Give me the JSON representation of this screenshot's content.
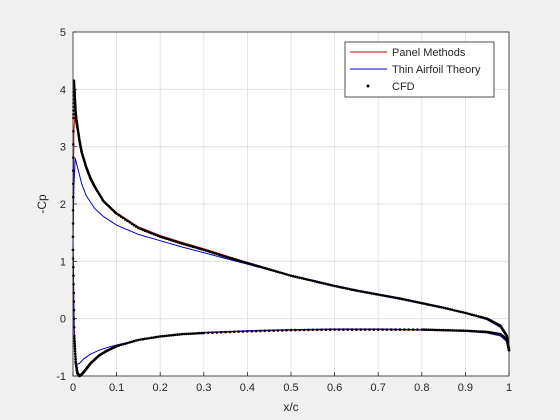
{
  "chart_data": {
    "type": "line",
    "xlabel": "x/c",
    "ylabel": "-Cp",
    "xlim": [
      0,
      1
    ],
    "ylim": [
      -1,
      5
    ],
    "xticks": [
      "0",
      "0.1",
      "0.2",
      "0.3",
      "0.4",
      "0.5",
      "0.6",
      "0.7",
      "0.8",
      "0.9",
      "1"
    ],
    "yticks": [
      "-1",
      "0",
      "1",
      "2",
      "3",
      "4",
      "5"
    ],
    "grid": true,
    "legend_position": "top-right",
    "series": [
      {
        "name": "Panel Methods",
        "color": "#cc0000",
        "style": "line",
        "upper": {
          "x": [
            0,
            0.002,
            0.005,
            0.01,
            0.02,
            0.03,
            0.05,
            0.07,
            0.1,
            0.15,
            0.2,
            0.25,
            0.3,
            0.35,
            0.4,
            0.45,
            0.5,
            0.55,
            0.6,
            0.65,
            0.7,
            0.75,
            0.8,
            0.85,
            0.9,
            0.95,
            0.98,
            0.995,
            1.0
          ],
          "y": [
            1.3,
            3.3,
            3.6,
            3.3,
            2.9,
            2.65,
            2.3,
            2.05,
            1.85,
            1.6,
            1.45,
            1.33,
            1.22,
            1.1,
            0.98,
            0.87,
            0.75,
            0.67,
            0.57,
            0.5,
            0.42,
            0.35,
            0.27,
            0.19,
            0.1,
            0.0,
            -0.12,
            -0.3,
            -0.55
          ]
        },
        "lower": {
          "x": [
            0,
            0.003,
            0.008,
            0.015,
            0.025,
            0.04,
            0.06,
            0.08,
            0.1,
            0.15,
            0.2,
            0.25,
            0.3,
            0.4,
            0.5,
            0.6,
            0.7,
            0.8,
            0.85,
            0.9,
            0.95,
            0.98,
            0.995,
            1.0
          ],
          "y": [
            1.3,
            -0.2,
            -0.85,
            -1.0,
            -0.95,
            -0.8,
            -0.65,
            -0.55,
            -0.48,
            -0.37,
            -0.31,
            -0.27,
            -0.25,
            -0.22,
            -0.2,
            -0.19,
            -0.19,
            -0.2,
            -0.21,
            -0.22,
            -0.24,
            -0.28,
            -0.38,
            -0.55
          ]
        }
      },
      {
        "name": "Thin Airfoil Theory",
        "color": "#0000cc",
        "style": "line",
        "upper": {
          "x": [
            0,
            0.002,
            0.005,
            0.01,
            0.02,
            0.03,
            0.05,
            0.07,
            0.1,
            0.15,
            0.2,
            0.25,
            0.3,
            0.35,
            0.4,
            0.45,
            0.5,
            0.55,
            0.6,
            0.65,
            0.7,
            0.75,
            0.8,
            0.85,
            0.9,
            0.95,
            0.98,
            0.995,
            1.0
          ],
          "y": [
            1.4,
            2.3,
            2.8,
            2.65,
            2.35,
            2.15,
            1.92,
            1.78,
            1.63,
            1.47,
            1.36,
            1.25,
            1.15,
            1.05,
            0.95,
            0.85,
            0.75,
            0.67,
            0.58,
            0.5,
            0.43,
            0.36,
            0.28,
            0.2,
            0.1,
            -0.02,
            -0.15,
            -0.32,
            -0.55
          ]
        },
        "lower": {
          "x": [
            0,
            0.003,
            0.008,
            0.015,
            0.025,
            0.04,
            0.06,
            0.08,
            0.1,
            0.15,
            0.2,
            0.25,
            0.3,
            0.4,
            0.5,
            0.6,
            0.7,
            0.8,
            0.85,
            0.9,
            0.95,
            0.98,
            0.995,
            1.0
          ],
          "y": [
            1.4,
            -0.4,
            -0.8,
            -0.78,
            -0.7,
            -0.62,
            -0.55,
            -0.5,
            -0.46,
            -0.37,
            -0.31,
            -0.27,
            -0.24,
            -0.21,
            -0.19,
            -0.18,
            -0.18,
            -0.19,
            -0.2,
            -0.22,
            -0.25,
            -0.3,
            -0.4,
            -0.55
          ]
        }
      },
      {
        "name": "CFD",
        "color": "#000000",
        "style": "dots",
        "upper": {
          "x": [
            0,
            0.001,
            0.002,
            0.004,
            0.006,
            0.008,
            0.01,
            0.015,
            0.02,
            0.03,
            0.04,
            0.05,
            0.07,
            0.1,
            0.15,
            0.2,
            0.25,
            0.3,
            0.35,
            0.4,
            0.45,
            0.5,
            0.55,
            0.6,
            0.65,
            0.7,
            0.75,
            0.8,
            0.85,
            0.9,
            0.95,
            0.98,
            0.995,
            1.0
          ],
          "y": [
            1.2,
            3.5,
            4.15,
            3.9,
            3.6,
            3.45,
            3.35,
            3.1,
            2.9,
            2.65,
            2.45,
            2.3,
            2.05,
            1.83,
            1.58,
            1.43,
            1.31,
            1.2,
            1.08,
            0.97,
            0.86,
            0.75,
            0.66,
            0.57,
            0.49,
            0.42,
            0.35,
            0.27,
            0.19,
            0.1,
            0.0,
            -0.12,
            -0.3,
            -0.55
          ]
        },
        "lower": {
          "x": [
            0,
            0.003,
            0.006,
            0.01,
            0.015,
            0.02,
            0.03,
            0.04,
            0.06,
            0.08,
            0.1,
            0.15,
            0.2,
            0.25,
            0.3,
            0.4,
            0.5,
            0.6,
            0.7,
            0.8,
            0.85,
            0.9,
            0.95,
            0.98,
            0.995,
            1.0
          ],
          "y": [
            1.2,
            -0.3,
            -0.75,
            -0.95,
            -1.0,
            -0.97,
            -0.88,
            -0.78,
            -0.64,
            -0.55,
            -0.48,
            -0.37,
            -0.31,
            -0.27,
            -0.25,
            -0.22,
            -0.2,
            -0.19,
            -0.19,
            -0.19,
            -0.2,
            -0.21,
            -0.23,
            -0.27,
            -0.36,
            -0.55
          ]
        }
      }
    ]
  }
}
